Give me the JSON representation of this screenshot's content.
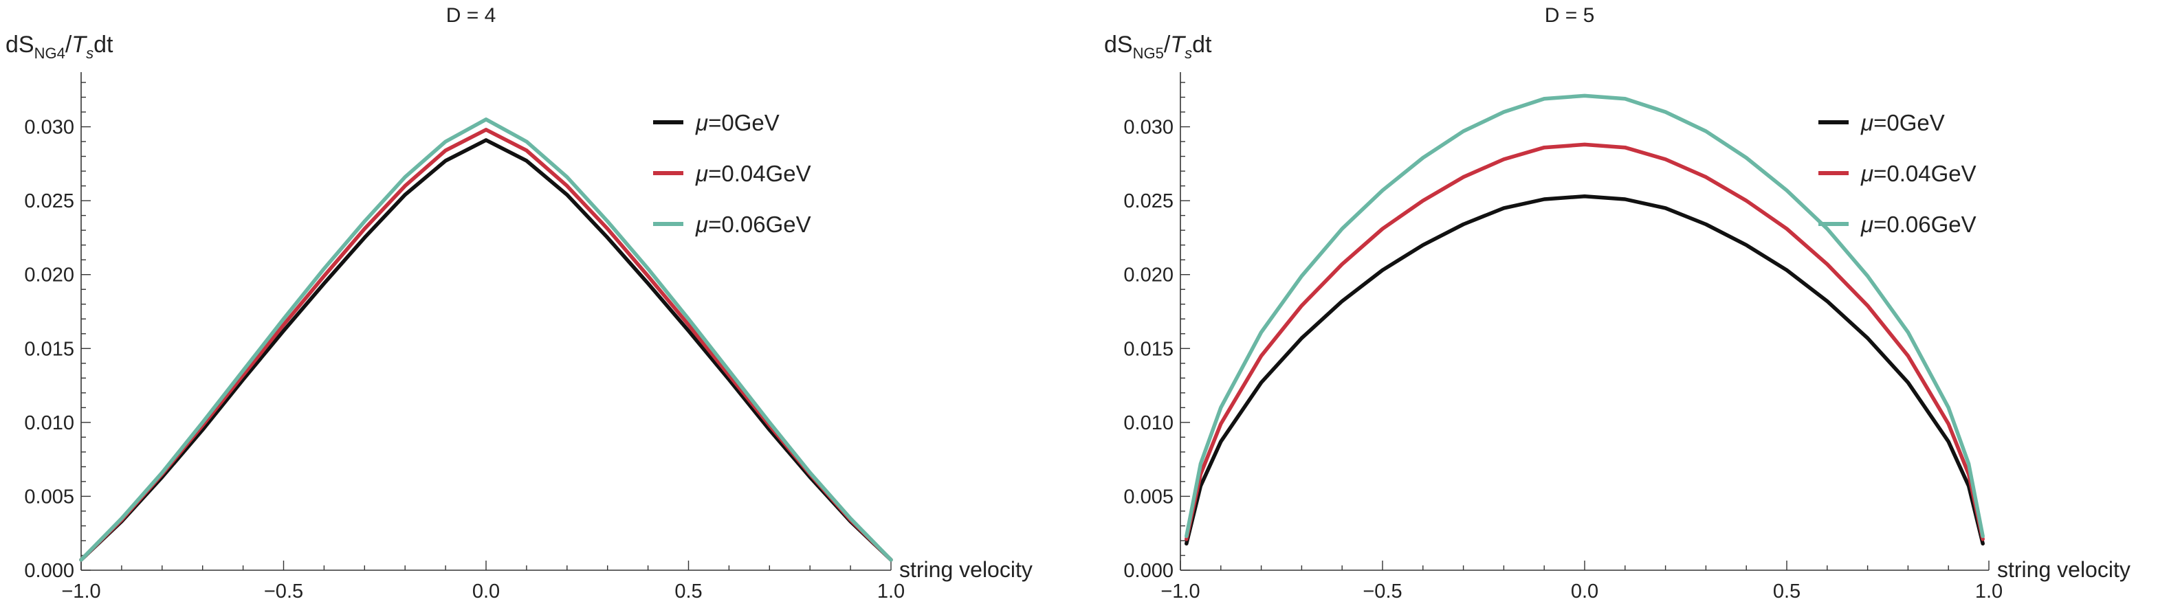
{
  "chart_data": [
    {
      "type": "line",
      "title": "D = 4",
      "ylabel_main": "dS",
      "ylabel_sub": "NG4",
      "ylabel_tail_italic": "T",
      "ylabel_tail_sub": "s",
      "ylabel_end": "dt",
      "xlabel": "string velocity",
      "xlim": [
        -1.0,
        1.0
      ],
      "ylim": [
        0.0,
        0.033
      ],
      "xticks": [
        "-1.0",
        "-0.5",
        "0.0",
        "0.5",
        "1.0"
      ],
      "xtick_values": [
        -1.0,
        -0.5,
        0.0,
        0.5,
        1.0
      ],
      "yticks": [
        "0.000",
        "0.005",
        "0.010",
        "0.015",
        "0.020",
        "0.025",
        "0.030"
      ],
      "ytick_values": [
        0.0,
        0.005,
        0.01,
        0.015,
        0.02,
        0.025,
        0.03
      ],
      "legend": {
        "position": "top-right",
        "entries": [
          {
            "italic": "μ",
            "text": "=0GeV"
          },
          {
            "italic": "μ",
            "text": "=0.04GeV"
          },
          {
            "italic": "μ",
            "text": "=0.06GeV"
          }
        ]
      },
      "series": [
        {
          "name": "μ=0GeV",
          "color": "#111111",
          "x": [
            -1.0,
            -0.9,
            -0.8,
            -0.7,
            -0.6,
            -0.5,
            -0.4,
            -0.3,
            -0.2,
            -0.1,
            0.0,
            0.1,
            0.2,
            0.3,
            0.4,
            0.5,
            0.6,
            0.7,
            0.8,
            0.9,
            1.0
          ],
          "y": [
            0.0007,
            0.0033,
            0.0063,
            0.0095,
            0.0129,
            0.0162,
            0.0194,
            0.0225,
            0.0254,
            0.0277,
            0.0291,
            0.0277,
            0.0254,
            0.0225,
            0.0194,
            0.0162,
            0.0129,
            0.0095,
            0.0063,
            0.0033,
            0.0007
          ]
        },
        {
          "name": "μ=0.04GeV",
          "color": "#c8323f",
          "x": [
            -1.0,
            -0.9,
            -0.8,
            -0.7,
            -0.6,
            -0.5,
            -0.4,
            -0.3,
            -0.2,
            -0.1,
            0.0,
            0.1,
            0.2,
            0.3,
            0.4,
            0.5,
            0.6,
            0.7,
            0.8,
            0.9,
            1.0
          ],
          "y": [
            0.0007,
            0.0034,
            0.0065,
            0.0098,
            0.0132,
            0.0166,
            0.0199,
            0.0231,
            0.026,
            0.0284,
            0.0298,
            0.0284,
            0.026,
            0.0231,
            0.0199,
            0.0166,
            0.0132,
            0.0098,
            0.0065,
            0.0034,
            0.0007
          ]
        },
        {
          "name": "μ=0.06GeV",
          "color": "#6ab7a4",
          "x": [
            -1.0,
            -0.9,
            -0.8,
            -0.7,
            -0.6,
            -0.5,
            -0.4,
            -0.3,
            -0.2,
            -0.1,
            0.0,
            0.1,
            0.2,
            0.3,
            0.4,
            0.5,
            0.6,
            0.7,
            0.8,
            0.9,
            1.0
          ],
          "y": [
            0.0007,
            0.0035,
            0.0066,
            0.01,
            0.0135,
            0.017,
            0.0204,
            0.0236,
            0.0266,
            0.029,
            0.0305,
            0.029,
            0.0266,
            0.0236,
            0.0204,
            0.017,
            0.0135,
            0.01,
            0.0066,
            0.0035,
            0.0007
          ]
        }
      ]
    },
    {
      "type": "line",
      "title": "D = 5",
      "ylabel_main": "dS",
      "ylabel_sub": "NG5",
      "ylabel_tail_italic": "T",
      "ylabel_tail_sub": "s",
      "ylabel_end": "dt",
      "xlabel": "string velocity",
      "xlim": [
        -1.0,
        1.0
      ],
      "ylim": [
        0.0,
        0.033
      ],
      "xticks": [
        "-1.0",
        "-0.5",
        "0.0",
        "0.5",
        "1.0"
      ],
      "xtick_values": [
        -1.0,
        -0.5,
        0.0,
        0.5,
        1.0
      ],
      "yticks": [
        "0.000",
        "0.005",
        "0.010",
        "0.015",
        "0.020",
        "0.025",
        "0.030"
      ],
      "ytick_values": [
        0.0,
        0.005,
        0.01,
        0.015,
        0.02,
        0.025,
        0.03
      ],
      "legend": {
        "position": "top-right",
        "entries": [
          {
            "italic": "μ",
            "text": "=0GeV"
          },
          {
            "italic": "μ",
            "text": "=0.04GeV"
          },
          {
            "italic": "μ",
            "text": "=0.06GeV"
          }
        ]
      },
      "series": [
        {
          "name": "μ=0GeV",
          "color": "#111111",
          "x": [
            -0.985,
            -0.95,
            -0.9,
            -0.8,
            -0.7,
            -0.6,
            -0.5,
            -0.4,
            -0.3,
            -0.2,
            -0.1,
            0.0,
            0.1,
            0.2,
            0.3,
            0.4,
            0.5,
            0.6,
            0.7,
            0.8,
            0.9,
            0.95,
            0.985
          ],
          "y": [
            0.0018,
            0.0057,
            0.0087,
            0.0127,
            0.0157,
            0.0182,
            0.0203,
            0.022,
            0.0234,
            0.0245,
            0.0251,
            0.0253,
            0.0251,
            0.0245,
            0.0234,
            0.022,
            0.0203,
            0.0182,
            0.0157,
            0.0127,
            0.0087,
            0.0057,
            0.0018
          ]
        },
        {
          "name": "μ=0.04GeV",
          "color": "#c8323f",
          "x": [
            -0.985,
            -0.95,
            -0.9,
            -0.8,
            -0.7,
            -0.6,
            -0.5,
            -0.4,
            -0.3,
            -0.2,
            -0.1,
            0.0,
            0.1,
            0.2,
            0.3,
            0.4,
            0.5,
            0.6,
            0.7,
            0.8,
            0.9,
            0.95,
            0.985
          ],
          "y": [
            0.0021,
            0.0065,
            0.0099,
            0.0145,
            0.0179,
            0.0207,
            0.0231,
            0.025,
            0.0266,
            0.0278,
            0.0286,
            0.0288,
            0.0286,
            0.0278,
            0.0266,
            0.025,
            0.0231,
            0.0207,
            0.0179,
            0.0145,
            0.0099,
            0.0065,
            0.0021
          ]
        },
        {
          "name": "μ=0.06GeV",
          "color": "#6ab7a4",
          "x": [
            -0.985,
            -0.95,
            -0.9,
            -0.8,
            -0.7,
            -0.6,
            -0.5,
            -0.4,
            -0.3,
            -0.2,
            -0.1,
            0.0,
            0.1,
            0.2,
            0.3,
            0.4,
            0.5,
            0.6,
            0.7,
            0.8,
            0.9,
            0.95,
            0.985
          ],
          "y": [
            0.0023,
            0.0072,
            0.011,
            0.0161,
            0.0199,
            0.0231,
            0.0257,
            0.0279,
            0.0297,
            0.031,
            0.0319,
            0.0321,
            0.0319,
            0.031,
            0.0297,
            0.0279,
            0.0257,
            0.0231,
            0.0199,
            0.0161,
            0.011,
            0.0072,
            0.0023
          ]
        }
      ]
    }
  ]
}
